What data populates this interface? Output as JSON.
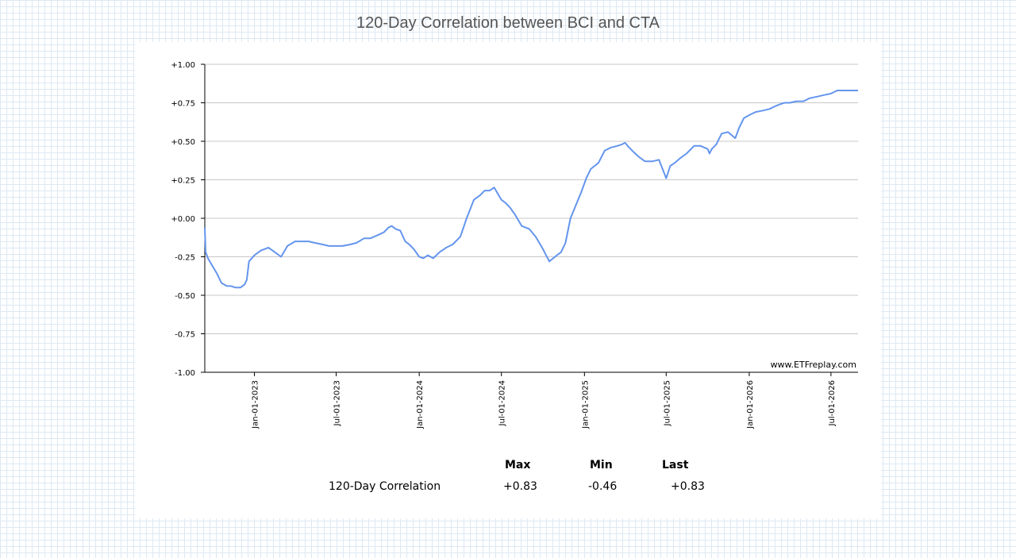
{
  "title": "120-Day Correlation between BCI and CTA",
  "watermark": "www.ETFreplay.com",
  "colors": {
    "line": "#6495ed",
    "grid": "#c8c8c8",
    "axis": "#000000"
  },
  "stats": {
    "headers": {
      "max": "Max",
      "min": "Min",
      "last": "Last"
    },
    "row_label": "120-Day Correlation",
    "max": "+0.83",
    "min": "-0.46",
    "last": "+0.83"
  },
  "chart_data": {
    "type": "line",
    "title": "120-Day Correlation between BCI and CTA",
    "xlabel": "",
    "ylabel": "",
    "ylim": [
      -1.0,
      1.0
    ],
    "yticks": [
      "+1.00",
      "+0.75",
      "+0.50",
      "+0.25",
      "+0.00",
      "-0.25",
      "-0.50",
      "-0.75",
      "-1.00"
    ],
    "ytick_values": [
      1.0,
      0.75,
      0.5,
      0.25,
      0.0,
      -0.25,
      -0.5,
      -0.75,
      -1.0
    ],
    "xlim": [
      "2022-09-13",
      "2026-08-30"
    ],
    "xticks": [
      {
        "label": "Jan-01-2023",
        "date": "2023-01-01"
      },
      {
        "label": "Jul-01-2023",
        "date": "2023-07-01"
      },
      {
        "label": "Jan-01-2024",
        "date": "2024-01-01"
      },
      {
        "label": "Jul-01-2024",
        "date": "2024-07-01"
      },
      {
        "label": "Jan-01-2025",
        "date": "2025-01-01"
      },
      {
        "label": "Jul-01-2025",
        "date": "2025-07-01"
      },
      {
        "label": "Jan-01-2026",
        "date": "2026-01-01"
      },
      {
        "label": "Jul-01-2026",
        "date": "2026-07-01"
      }
    ],
    "grid": true,
    "series": [
      {
        "name": "",
        "x": [
          "2022-09-13",
          "2022-09-15",
          "2022-09-20",
          "2022-09-28",
          "2022-10-10",
          "2022-10-20",
          "2022-11-01",
          "2022-11-10",
          "2022-11-20",
          "2022-12-01",
          "2022-12-10",
          "2022-12-15",
          "2022-12-20",
          "2023-01-01",
          "2023-01-15",
          "2023-02-01",
          "2023-02-15",
          "2023-03-01",
          "2023-03-15",
          "2023-04-01",
          "2023-04-15",
          "2023-05-01",
          "2023-05-15",
          "2023-06-01",
          "2023-06-15",
          "2023-07-01",
          "2023-07-15",
          "2023-08-01",
          "2023-08-15",
          "2023-09-01",
          "2023-09-15",
          "2023-10-01",
          "2023-10-15",
          "2023-10-25",
          "2023-11-01",
          "2023-11-10",
          "2023-11-20",
          "2023-12-01",
          "2023-12-10",
          "2023-12-20",
          "2024-01-01",
          "2024-01-10",
          "2024-01-20",
          "2024-02-01",
          "2024-02-15",
          "2024-03-01",
          "2024-03-15",
          "2024-04-01",
          "2024-04-15",
          "2024-05-01",
          "2024-05-15",
          "2024-05-25",
          "2024-06-05",
          "2024-06-15",
          "2024-07-01",
          "2024-07-10",
          "2024-07-20",
          "2024-08-01",
          "2024-08-15",
          "2024-09-01",
          "2024-09-15",
          "2024-10-01",
          "2024-10-15",
          "2024-11-01",
          "2024-11-10",
          "2024-11-20",
          "2024-12-01",
          "2024-12-15",
          "2024-12-25",
          "2025-01-05",
          "2025-01-15",
          "2025-02-01",
          "2025-02-15",
          "2025-03-01",
          "2025-03-15",
          "2025-03-25",
          "2025-04-01",
          "2025-04-10",
          "2025-04-20",
          "2025-05-01",
          "2025-05-15",
          "2025-06-01",
          "2025-06-15",
          "2025-07-01",
          "2025-07-10",
          "2025-07-20",
          "2025-08-01",
          "2025-08-15",
          "2025-09-01",
          "2025-09-15",
          "2025-10-01",
          "2025-10-05",
          "2025-10-10",
          "2025-10-20",
          "2025-11-01",
          "2025-11-15",
          "2025-12-01",
          "2025-12-10",
          "2025-12-20",
          "2026-01-01",
          "2026-01-15",
          "2026-02-01",
          "2026-02-15",
          "2026-03-01",
          "2026-03-10",
          "2026-03-20",
          "2026-04-01",
          "2026-04-15",
          "2026-05-01",
          "2026-05-15",
          "2026-06-01",
          "2026-06-15",
          "2026-07-01",
          "2026-07-15",
          "2026-08-01",
          "2026-08-15",
          "2026-08-30"
        ],
        "y": [
          -0.06,
          -0.22,
          -0.26,
          -0.3,
          -0.36,
          -0.42,
          -0.44,
          -0.44,
          -0.45,
          -0.45,
          -0.43,
          -0.4,
          -0.28,
          -0.24,
          -0.21,
          -0.19,
          -0.22,
          -0.25,
          -0.18,
          -0.15,
          -0.15,
          -0.15,
          -0.16,
          -0.17,
          -0.18,
          -0.18,
          -0.18,
          -0.17,
          -0.16,
          -0.13,
          -0.13,
          -0.11,
          -0.09,
          -0.06,
          -0.05,
          -0.07,
          -0.08,
          -0.15,
          -0.17,
          -0.2,
          -0.25,
          -0.26,
          -0.24,
          -0.26,
          -0.22,
          -0.19,
          -0.17,
          -0.12,
          0.0,
          0.12,
          0.15,
          0.18,
          0.18,
          0.2,
          0.12,
          0.1,
          0.07,
          0.02,
          -0.05,
          -0.07,
          -0.12,
          -0.2,
          -0.28,
          -0.24,
          -0.22,
          -0.16,
          0.0,
          0.1,
          0.17,
          0.26,
          0.32,
          0.36,
          0.44,
          0.46,
          0.47,
          0.48,
          0.49,
          0.46,
          0.43,
          0.4,
          0.37,
          0.37,
          0.38,
          0.26,
          0.34,
          0.36,
          0.39,
          0.42,
          0.47,
          0.47,
          0.45,
          0.42,
          0.45,
          0.48,
          0.55,
          0.56,
          0.52,
          0.59,
          0.65,
          0.67,
          0.69,
          0.7,
          0.71,
          0.73,
          0.74,
          0.75,
          0.75,
          0.76,
          0.76,
          0.78,
          0.79,
          0.8,
          0.81,
          0.83,
          0.83,
          0.83,
          0.83
        ]
      }
    ]
  }
}
